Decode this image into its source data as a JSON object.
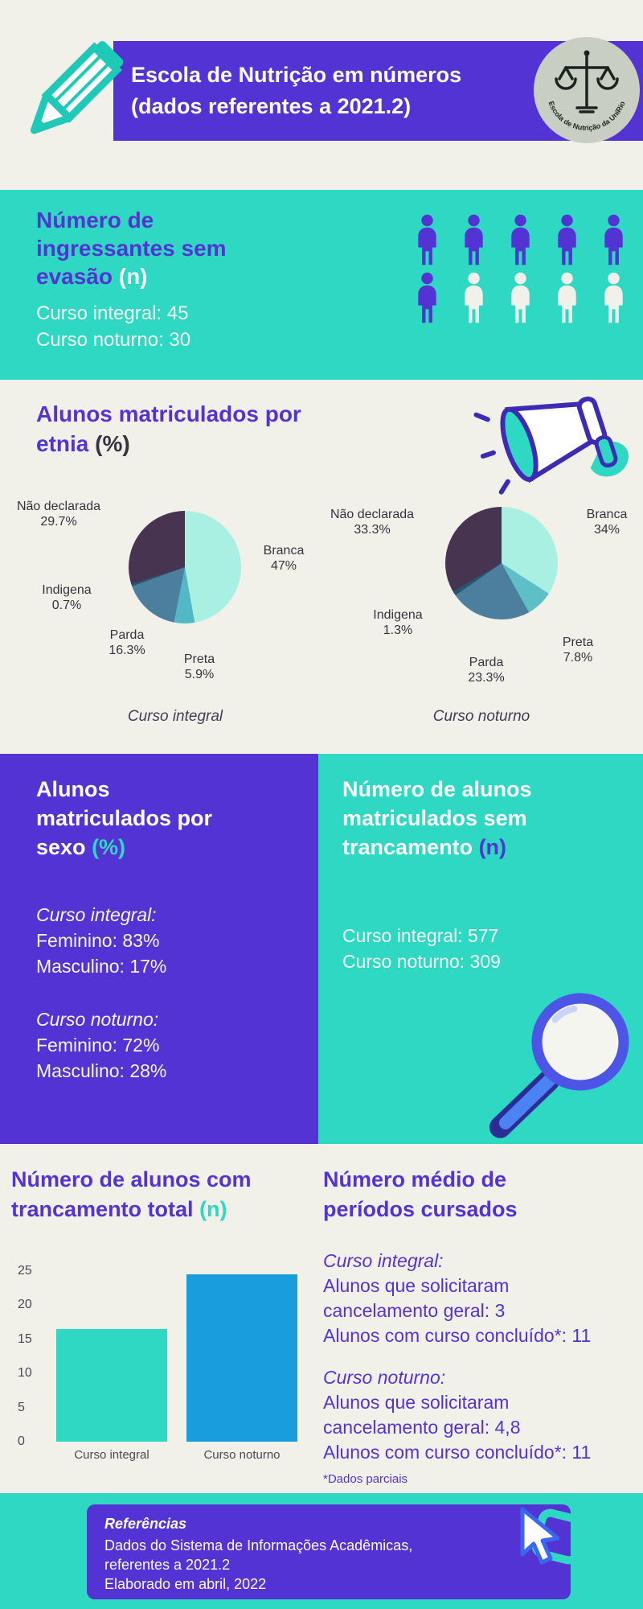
{
  "colors": {
    "purple": "#5433d4",
    "teal": "#2ed8c3",
    "background": "#f1f1ea",
    "bar_blue": "#1a9ddc",
    "dark_text": "#3f3d56",
    "white_text": "#f6f7f1"
  },
  "header": {
    "title_line1": "Escola de Nutrição em números",
    "title_line2": "(dados referentes a 2021.2)",
    "logo_text": "Escola de Nutrição da UniRio"
  },
  "ingress": {
    "title_lines": [
      "Número de",
      "ingressantes sem",
      "evasão"
    ],
    "suffix": "(n)",
    "lines": [
      "Curso integral: 45",
      "Curso noturno: 30"
    ],
    "pictogram_rows": [
      [
        "purple",
        "purple",
        "purple",
        "purple",
        "purple"
      ],
      [
        "purple",
        "white",
        "white",
        "white",
        "white"
      ]
    ]
  },
  "ethnicity": {
    "title_lines": [
      "Alunos matriculados por",
      "etnia"
    ],
    "suffix": "(%)"
  },
  "sex": {
    "title_lines": [
      "Alunos",
      "matriculados por",
      "sexo"
    ],
    "suffix": "(%)",
    "groups": [
      {
        "label": "Curso integral:",
        "lines": [
          "Feminino: 83%",
          "Masculino: 17%"
        ]
      },
      {
        "label": "Curso noturno:",
        "lines": [
          "Feminino: 72%",
          "Masculino: 28%"
        ]
      }
    ]
  },
  "no_trancamento": {
    "title_lines": [
      "Número de alunos",
      "matriculados sem",
      "trancamento"
    ],
    "suffix": "(n)",
    "lines": [
      "Curso integral: 577",
      "Curso noturno: 309"
    ]
  },
  "trancamento_total": {
    "title_lines": [
      "Número de alunos com",
      "trancamento total"
    ],
    "suffix": "(n)"
  },
  "periodos": {
    "title_lines": [
      "Número médio de",
      "períodos cursados"
    ],
    "groups": [
      {
        "label": "Curso integral:",
        "lines": [
          "Alunos que solicitaram",
          "cancelamento geral: 3",
          "Alunos com curso concluído*: 11"
        ]
      },
      {
        "label": "Curso noturno:",
        "lines": [
          "Alunos que solicitaram",
          "cancelamento geral: 4,8",
          "Alunos com curso concluído*: 11"
        ]
      }
    ],
    "footnote": "*Dados parciais"
  },
  "references": {
    "title": "Referências",
    "lines": [
      "Dados do Sistema de Informações Acadêmicas,",
      "referentes a 2021.2",
      "Elaborado em abril, 2022"
    ]
  },
  "chart_data": [
    {
      "type": "pie",
      "title": "Curso integral",
      "slices": [
        {
          "label": "Branca",
          "pct": "47%",
          "value": 47,
          "color": "#a9efe2"
        },
        {
          "label": "Preta",
          "pct": "5.9%",
          "value": 5.9,
          "color": "#53b8c6"
        },
        {
          "label": "Parda",
          "pct": "16.3%",
          "value": 16.3,
          "color": "#4c7f9e"
        },
        {
          "label": "Indigena",
          "pct": "0.7%",
          "value": 0.7,
          "color": "#27566e"
        },
        {
          "label": "Não declarada",
          "pct": "29.7%",
          "value": 29.7,
          "color": "#463450"
        }
      ]
    },
    {
      "type": "pie",
      "title": "Curso noturno",
      "slices": [
        {
          "label": "Branca",
          "pct": "34%",
          "value": 34,
          "color": "#a9efe2"
        },
        {
          "label": "Preta",
          "pct": "7.8%",
          "value": 7.8,
          "color": "#5ebfc6"
        },
        {
          "label": "Parda",
          "pct": "23.3%",
          "value": 23.3,
          "color": "#4c7f9e"
        },
        {
          "label": "Indigena",
          "pct": "1.3%",
          "value": 1.3,
          "color": "#27566e"
        },
        {
          "label": "Não declarada",
          "pct": "33.3%",
          "value": 33.3,
          "color": "#463450"
        }
      ]
    },
    {
      "type": "bar",
      "title": "Número de alunos com trancamento total (n)",
      "categories": [
        "Curso integral",
        "Curso noturno"
      ],
      "values": [
        16.5,
        24.5
      ],
      "colors": [
        "#2ed8c3",
        "#1a9ddc"
      ],
      "ylim": [
        0,
        25
      ],
      "yticks": [
        0,
        5,
        10,
        15,
        20,
        25
      ],
      "grid": false,
      "legend": false
    }
  ]
}
